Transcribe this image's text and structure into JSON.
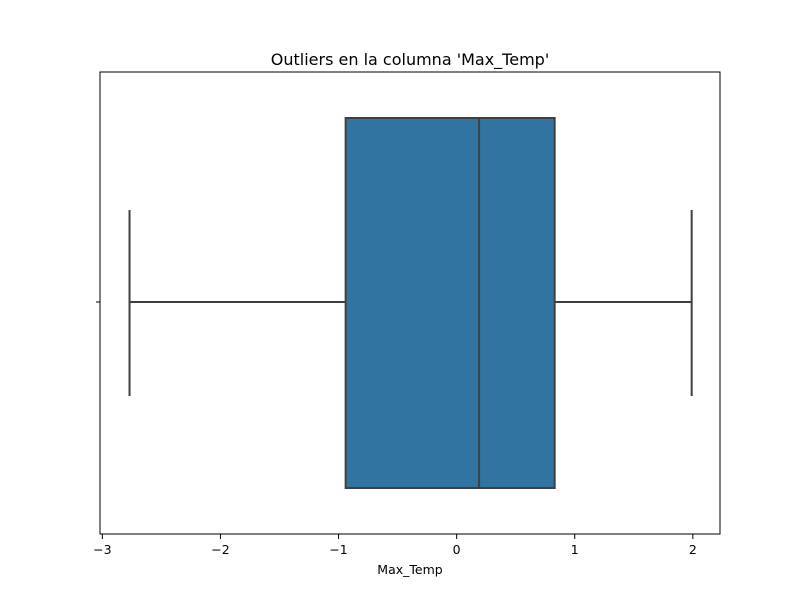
{
  "chart_data": {
    "type": "boxplot",
    "title": "Outliers en la columna 'Max_Temp'",
    "xlabel": "Max_Temp",
    "ylabel": "",
    "xlim": [
      -3.02,
      2.23
    ],
    "xticks": [
      -3,
      -2,
      -1,
      0,
      1,
      2
    ],
    "xtick_labels": [
      "−3",
      "−2",
      "−1",
      "0",
      "1",
      "2"
    ],
    "orientation": "horizontal",
    "grid": false,
    "box": {
      "whisker_low": -2.77,
      "q1": -0.94,
      "median": 0.19,
      "q3": 0.83,
      "whisker_high": 1.99
    },
    "colors": {
      "box_fill": "#3274a1",
      "line": "#3f3f3f",
      "axis": "#000000"
    }
  }
}
